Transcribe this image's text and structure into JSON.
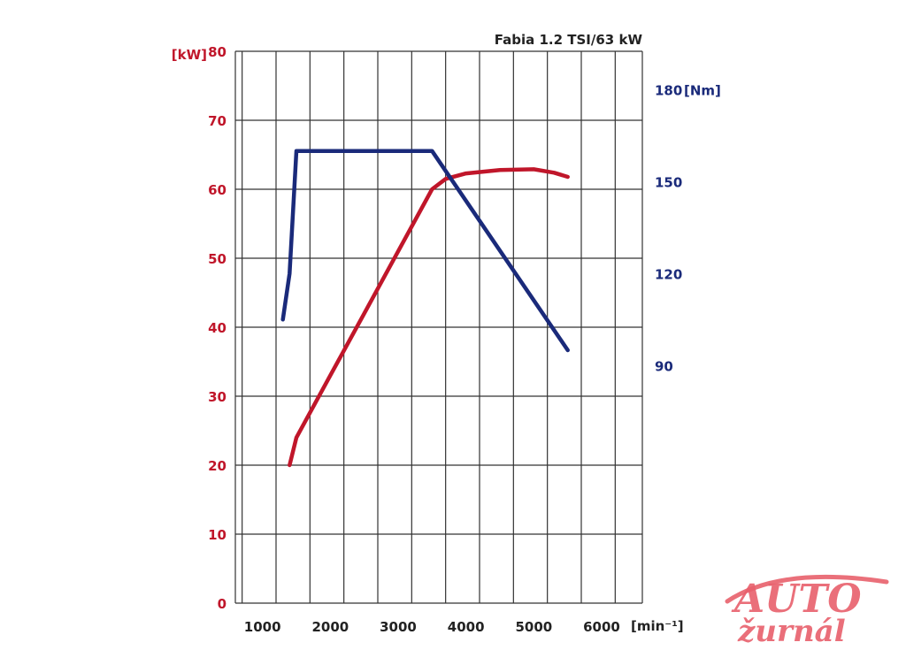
{
  "chart_data": {
    "type": "line",
    "title": "Fabia 1.2 TSI/63 kW",
    "x_unit": "[min⁻¹]",
    "x_ticks": [
      1000,
      2000,
      3000,
      4000,
      5000,
      6000
    ],
    "xlim": [
      600,
      6600
    ],
    "left_axis": {
      "unit": "[kW]",
      "ylim": [
        0,
        80
      ],
      "ticks": [
        0,
        10,
        20,
        30,
        40,
        50,
        60,
        70,
        80
      ]
    },
    "right_axis": {
      "unit": "[Nm]",
      "ticks": [
        90,
        120,
        150,
        180
      ],
      "ylim": [
        12.5,
        192.5
      ]
    },
    "grid": true,
    "series": [
      {
        "axis": "left",
        "color": "#c0162a",
        "points": [
          [
            1400,
            20
          ],
          [
            1500,
            24
          ],
          [
            2000,
            33
          ],
          [
            2500,
            42
          ],
          [
            3000,
            51
          ],
          [
            3500,
            60
          ],
          [
            3700,
            61.5
          ],
          [
            4000,
            62.3
          ],
          [
            4500,
            62.8
          ],
          [
            5000,
            62.9
          ],
          [
            5300,
            62.4
          ],
          [
            5500,
            61.8
          ]
        ]
      },
      {
        "axis": "right",
        "color": "#1a2a7a",
        "points": [
          [
            1300,
            105
          ],
          [
            1400,
            120
          ],
          [
            1500,
            160
          ],
          [
            3500,
            160
          ],
          [
            5500,
            95
          ]
        ]
      }
    ]
  },
  "colors": {
    "kw": "#c0162a",
    "nm": "#1a2a7a",
    "grid": "#333333"
  },
  "watermark": {
    "line1": "AUTO",
    "line2": "žurnál"
  }
}
